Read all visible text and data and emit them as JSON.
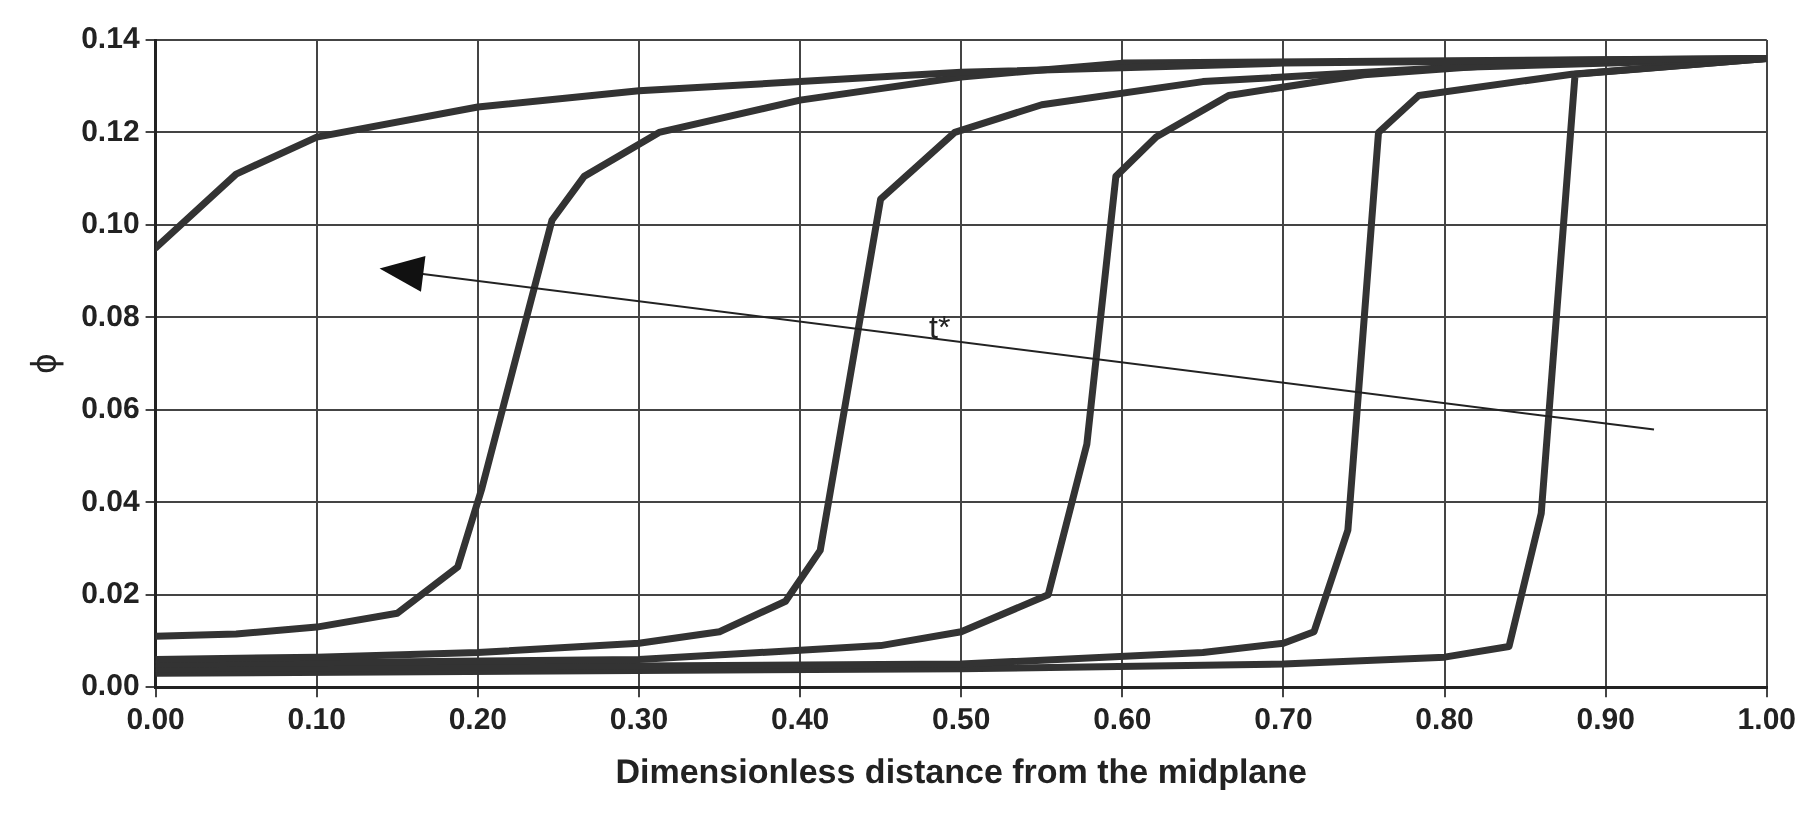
{
  "chart_data": {
    "type": "line",
    "xlabel": "Dimensionless distance from the midplane",
    "ylabel": "ϕ",
    "xlim": [
      0,
      1
    ],
    "xticks": [
      {
        "value": 0,
        "label": "0.00"
      },
      {
        "value": 0.1,
        "label": "0.10"
      },
      {
        "value": 0.2,
        "label": "0.20"
      },
      {
        "value": 0.3,
        "label": "0.30"
      },
      {
        "value": 0.4,
        "label": "0.40"
      },
      {
        "value": 0.5,
        "label": "0.50"
      },
      {
        "value": 0.6,
        "label": "0.60"
      },
      {
        "value": 0.7,
        "label": "0.70"
      },
      {
        "value": 0.8,
        "label": "0.80"
      },
      {
        "value": 0.9,
        "label": "0.90"
      },
      {
        "value": 1,
        "label": "1.00"
      }
    ],
    "ylim": [
      0,
      0.14
    ],
    "yticks": [
      {
        "value": 0,
        "label": "0.00"
      },
      {
        "value": 0.02,
        "label": "0.02"
      },
      {
        "value": 0.04,
        "label": "0.04"
      },
      {
        "value": 0.06,
        "label": "0.06"
      },
      {
        "value": 0.08,
        "label": "0.08"
      },
      {
        "value": 0.1,
        "label": "0.10"
      },
      {
        "value": 0.12,
        "label": "0.12"
      },
      {
        "value": 0.14,
        "label": "0.14"
      }
    ],
    "grid": true,
    "legend": false,
    "marker": "none",
    "line_style": "solid",
    "annotations": [
      "t*"
    ],
    "series": [
      {
        "color": "#333333",
        "x": [
          0,
          0.05,
          0.1,
          0.2,
          0.3,
          0.4,
          0.5,
          0.7,
          1
        ],
        "values": [
          0.095,
          0.111,
          0.119,
          0.1255,
          0.129,
          0.131,
          0.133,
          0.135,
          0.136
        ]
      },
      {
        "color": "#333333",
        "x": [
          0,
          0.05,
          0.1,
          0.15,
          0.1875,
          0.2025,
          0.246,
          0.266,
          0.3125,
          0.4,
          0.5,
          0.6,
          1
        ],
        "values": [
          0.011,
          0.0115,
          0.013,
          0.016,
          0.026,
          0.043,
          0.101,
          0.1105,
          0.12,
          0.127,
          0.132,
          0.135,
          0.136
        ]
      },
      {
        "color": "#333333",
        "x": [
          0,
          0.1,
          0.2,
          0.3,
          0.35,
          0.391,
          0.4125,
          0.45,
          0.496,
          0.55,
          0.65,
          0.8,
          1
        ],
        "values": [
          0.006,
          0.0065,
          0.0075,
          0.0095,
          0.012,
          0.0186,
          0.0296,
          0.1056,
          0.12,
          0.126,
          0.131,
          0.134,
          0.136
        ]
      },
      {
        "color": "#333333",
        "x": [
          0,
          0.3,
          0.45,
          0.5,
          0.554,
          0.578,
          0.596,
          0.621,
          0.666,
          0.75,
          0.85,
          1
        ],
        "values": [
          0.005,
          0.006,
          0.009,
          0.012,
          0.02,
          0.0526,
          0.1105,
          0.119,
          0.128,
          0.1325,
          0.135,
          0.136
        ]
      },
      {
        "color": "#333333",
        "x": [
          0,
          0.5,
          0.65,
          0.7,
          0.719,
          0.74,
          0.759,
          0.784,
          0.879,
          1
        ],
        "values": [
          0.004,
          0.005,
          0.0075,
          0.0095,
          0.012,
          0.034,
          0.12,
          0.128,
          0.1326,
          0.136
        ]
      },
      {
        "color": "#333333",
        "x": [
          0,
          0.5,
          0.7,
          0.8,
          0.84,
          0.86,
          0.881,
          1
        ],
        "values": [
          0.003,
          0.004,
          0.005,
          0.0065,
          0.0088,
          0.0376,
          0.1326,
          0.136
        ]
      }
    ]
  }
}
